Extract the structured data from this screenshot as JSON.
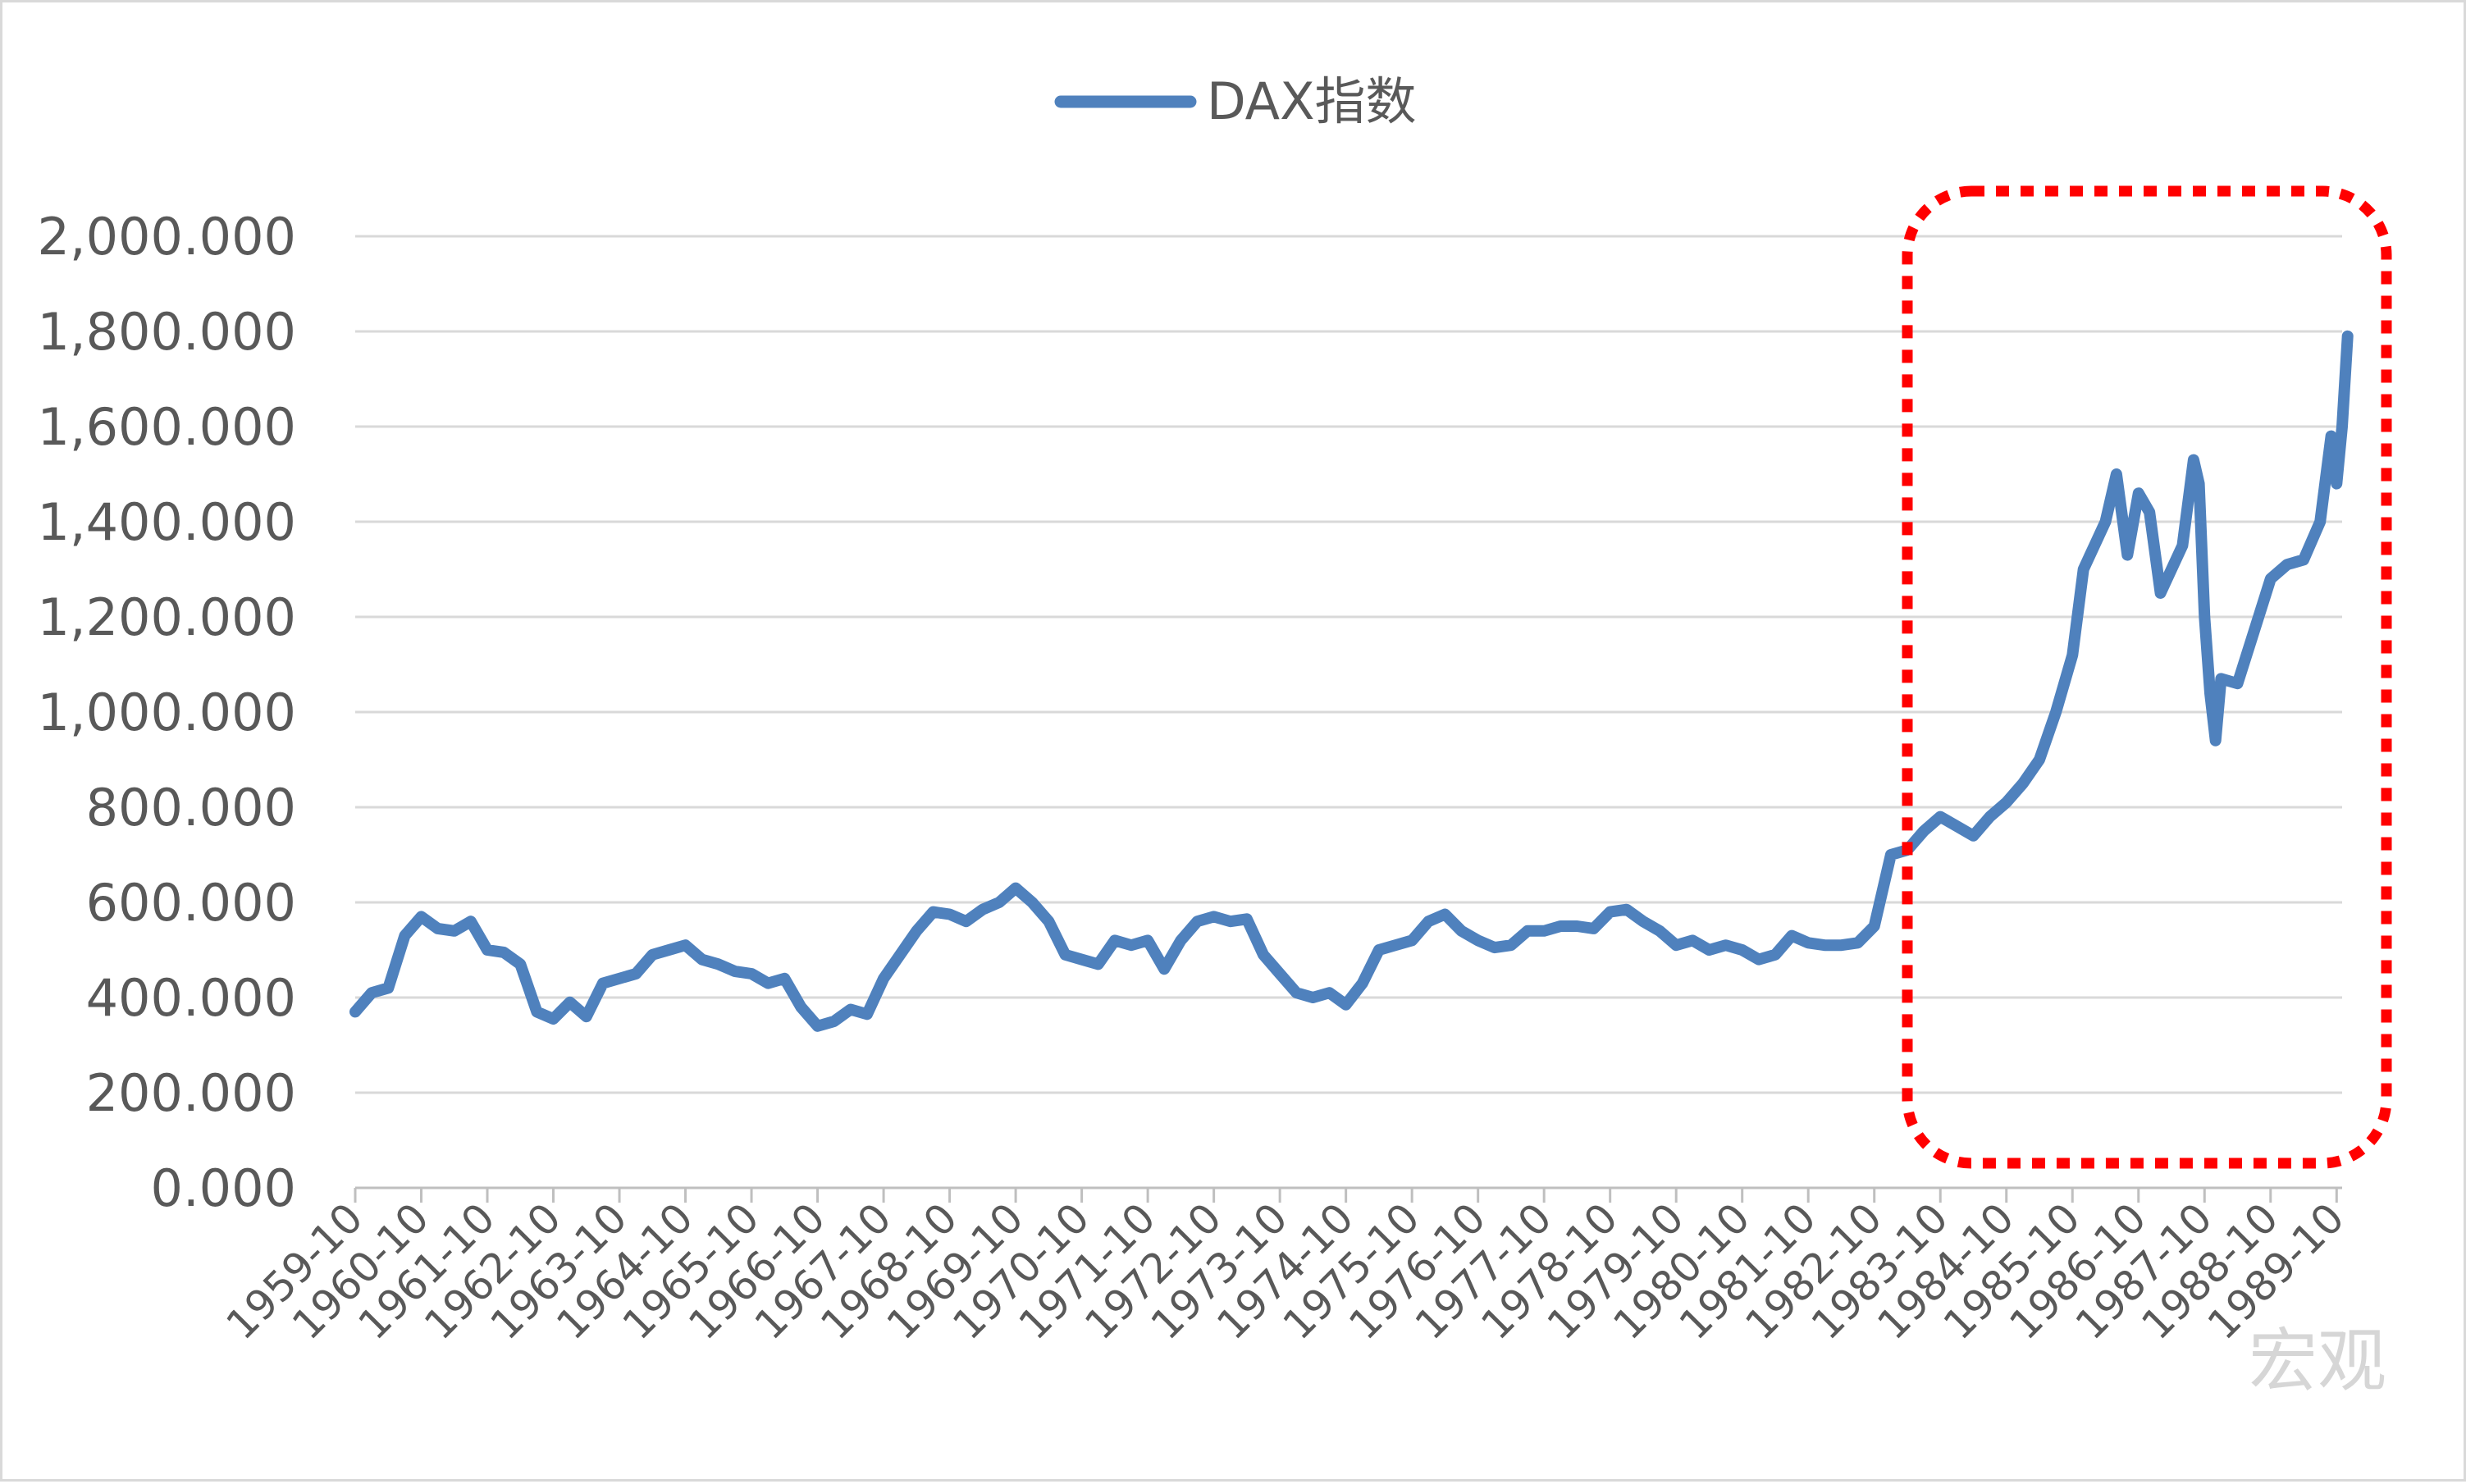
{
  "chart_data": {
    "type": "line",
    "title": "",
    "xlabel": "",
    "ylabel": "",
    "ylim": [
      0,
      2000
    ],
    "y_ticks": [
      "0.000",
      "200.000",
      "400.000",
      "600.000",
      "800.000",
      "1,000.000",
      "1,200.000",
      "1,400.000",
      "1,600.000",
      "1,800.000",
      "2,000.000"
    ],
    "x_tick_labels": [
      "1959-10",
      "1960-10",
      "1961-10",
      "1962-10",
      "1963-10",
      "1964-10",
      "1965-10",
      "1966-10",
      "1967-10",
      "1968-10",
      "1969-10",
      "1970-10",
      "1971-10",
      "1972-10",
      "1973-10",
      "1974-10",
      "1975-10",
      "1976-10",
      "1977-10",
      "1978-10",
      "1979-10",
      "1980-10",
      "1981-10",
      "1982-10",
      "1983-10",
      "1984-10",
      "1985-10",
      "1986-10",
      "1987-10",
      "1988-10",
      "1989-10"
    ],
    "grid": true,
    "legend_position": "top-center",
    "line_color": "#4f81bd",
    "highlight_box_color": "#ff0000",
    "series": [
      {
        "name": "DAX指数",
        "x": [
          "1959-10",
          "1960-01",
          "1960-04",
          "1960-07",
          "1960-10",
          "1961-01",
          "1961-04",
          "1961-07",
          "1961-10",
          "1962-01",
          "1962-04",
          "1962-07",
          "1962-10",
          "1963-01",
          "1963-04",
          "1963-07",
          "1963-10",
          "1964-01",
          "1964-04",
          "1964-07",
          "1964-10",
          "1965-01",
          "1965-04",
          "1965-07",
          "1965-10",
          "1966-01",
          "1966-04",
          "1966-07",
          "1966-10",
          "1967-01",
          "1967-04",
          "1967-07",
          "1967-10",
          "1968-01",
          "1968-04",
          "1968-07",
          "1968-10",
          "1969-01",
          "1969-04",
          "1969-07",
          "1969-10",
          "1970-01",
          "1970-04",
          "1970-07",
          "1970-10",
          "1971-01",
          "1971-04",
          "1971-07",
          "1971-10",
          "1972-01",
          "1972-04",
          "1972-07",
          "1972-10",
          "1973-01",
          "1973-04",
          "1973-07",
          "1973-10",
          "1974-01",
          "1974-04",
          "1974-07",
          "1974-10",
          "1975-01",
          "1975-04",
          "1975-07",
          "1975-10",
          "1976-01",
          "1976-04",
          "1976-07",
          "1976-10",
          "1977-01",
          "1977-04",
          "1977-07",
          "1977-10",
          "1978-01",
          "1978-04",
          "1978-07",
          "1978-10",
          "1979-01",
          "1979-04",
          "1979-07",
          "1979-10",
          "1980-01",
          "1980-04",
          "1980-07",
          "1980-10",
          "1981-01",
          "1981-04",
          "1981-07",
          "1981-10",
          "1982-01",
          "1982-04",
          "1982-07",
          "1982-10",
          "1983-01",
          "1983-04",
          "1983-07",
          "1983-10",
          "1984-01",
          "1984-04",
          "1984-07",
          "1984-10",
          "1985-01",
          "1985-04",
          "1985-07",
          "1985-10",
          "1985-12",
          "1986-02",
          "1986-04",
          "1986-06",
          "1986-08",
          "1986-10",
          "1986-12",
          "1987-02",
          "1987-04",
          "1987-06",
          "1987-08",
          "1987-09",
          "1987-10",
          "1987-11",
          "1987-12",
          "1988-01",
          "1988-04",
          "1988-07",
          "1988-10",
          "1989-01",
          "1989-04",
          "1989-07",
          "1989-09",
          "1989-10",
          "1989-11",
          "1989-12"
        ],
        "values": [
          370,
          410,
          420,
          530,
          570,
          545,
          540,
          560,
          500,
          495,
          470,
          370,
          355,
          390,
          360,
          430,
          440,
          450,
          490,
          500,
          510,
          480,
          470,
          455,
          450,
          430,
          440,
          380,
          340,
          350,
          375,
          365,
          440,
          490,
          540,
          580,
          575,
          560,
          585,
          600,
          630,
          600,
          560,
          490,
          480,
          470,
          520,
          510,
          520,
          460,
          520,
          560,
          570,
          560,
          565,
          490,
          450,
          410,
          400,
          410,
          385,
          430,
          500,
          510,
          520,
          560,
          575,
          540,
          520,
          505,
          510,
          540,
          540,
          550,
          550,
          545,
          580,
          585,
          560,
          540,
          510,
          520,
          500,
          510,
          500,
          480,
          490,
          530,
          515,
          510,
          510,
          515,
          550,
          700,
          710,
          750,
          780,
          760,
          740,
          780,
          810,
          850,
          900,
          1000,
          1120,
          1300,
          1350,
          1400,
          1500,
          1330,
          1460,
          1420,
          1250,
          1300,
          1350,
          1530,
          1480,
          1200,
          1040,
          940,
          1070,
          1060,
          1170,
          1280,
          1310,
          1320,
          1400,
          1580,
          1480,
          1600,
          1790
        ]
      }
    ]
  },
  "watermark": "宏观"
}
